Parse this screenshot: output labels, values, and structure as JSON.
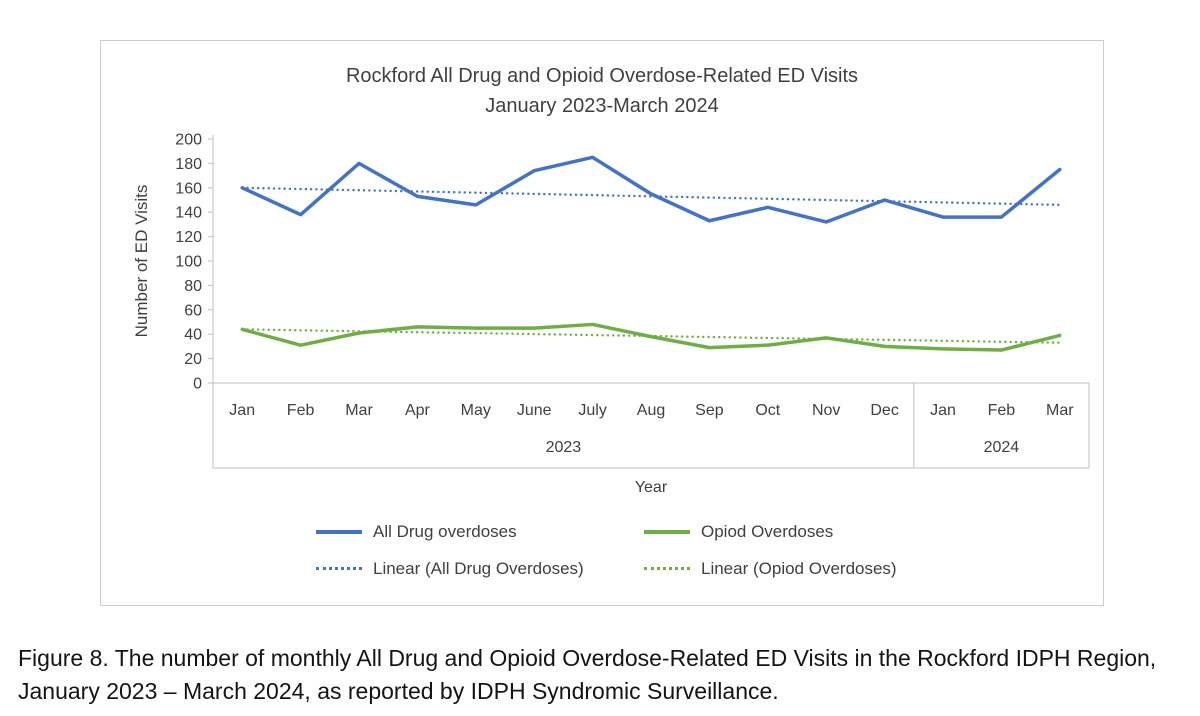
{
  "figure": {
    "title_line1": "Rockford All Drug and Opioid Overdose-Related ED Visits",
    "title_line2": "January 2023-March 2024",
    "caption": "Figure 8. The number of monthly All Drug and Opioid Overdose-Related ED Visits in the Rockford IDPH Region, January 2023 – March 2024, as reported by IDPH Syndromic Surveillance."
  },
  "chart_data": {
    "type": "line",
    "title": "Rockford All Drug and Opioid Overdose-Related ED Visits January 2023-March 2024",
    "xlabel": "Year",
    "ylabel": "Number of ED Visits",
    "ylim": [
      0,
      200
    ],
    "ytick_step": 20,
    "grid": false,
    "legend_position": "bottom",
    "categories": [
      "Jan",
      "Feb",
      "Mar",
      "Apr",
      "May",
      "June",
      "July",
      "Aug",
      "Sep",
      "Oct",
      "Nov",
      "Dec",
      "Jan",
      "Feb",
      "Mar"
    ],
    "year_groups": [
      {
        "label": "2023",
        "span": 12
      },
      {
        "label": "2024",
        "span": 3
      }
    ],
    "series": [
      {
        "name": "All Drug overdoses",
        "color": "#4472C4",
        "style": "solid",
        "values": [
          160,
          138,
          180,
          153,
          146,
          174,
          185,
          155,
          133,
          144,
          132,
          150,
          136,
          136,
          175
        ]
      },
      {
        "name": "Opiod Overdoses",
        "color": "#70AD47",
        "style": "solid",
        "values": [
          44,
          31,
          41,
          46,
          45,
          45,
          48,
          38,
          29,
          31,
          37,
          30,
          28,
          27,
          39
        ]
      },
      {
        "name": "Linear (All Drug Overdoses)",
        "color": "#4472C4",
        "style": "dotted",
        "values": [
          160,
          159,
          158,
          157,
          156,
          155,
          154,
          153,
          152,
          151,
          150,
          149,
          148,
          147,
          146
        ]
      },
      {
        "name": "Linear (Opiod Overdoses)",
        "color": "#70AD47",
        "style": "dotted",
        "values": [
          44,
          43.2,
          42.4,
          41.6,
          40.9,
          40.1,
          39.3,
          38.5,
          37.7,
          36.9,
          36.1,
          35.4,
          34.6,
          33.8,
          33
        ]
      }
    ],
    "axis_color": "#bfbfbf",
    "text_color": "#404040"
  }
}
